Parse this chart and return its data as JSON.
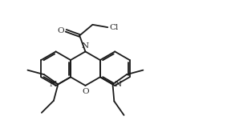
{
  "bg_color": "#ffffff",
  "line_color": "#1a1a1a",
  "lw": 1.3,
  "fs": 7.0,
  "figsize": [
    2.88,
    1.65
  ],
  "dpi": 100,
  "bl": 1.0,
  "xlim": [
    -1.5,
    11.5
  ],
  "ylim": [
    -1.2,
    6.5
  ]
}
